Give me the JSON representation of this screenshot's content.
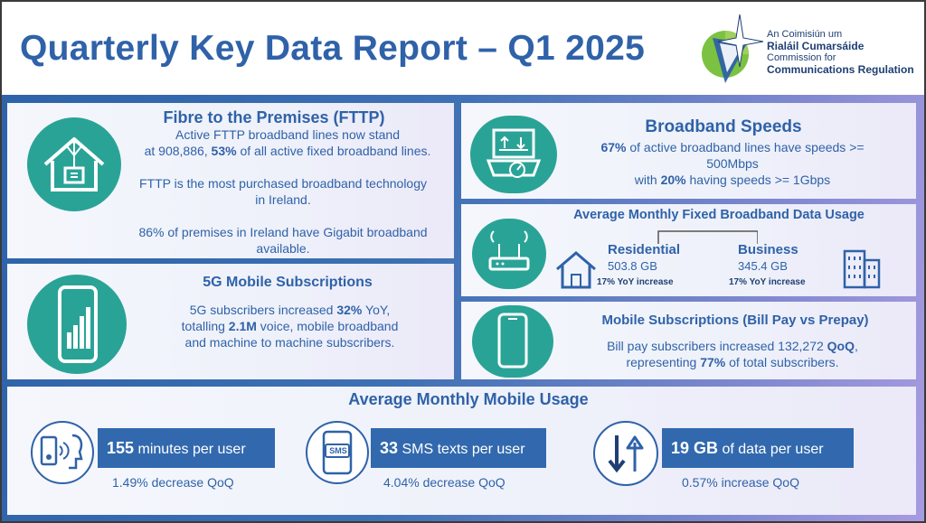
{
  "header": {
    "title": "Quarterly Key Data Report – Q1 2025",
    "logo_line1": "An Coimisiún um",
    "logo_line2": "Rialáil Cumarsáide",
    "logo_line3": "Commission for",
    "logo_line4": "Communications Regulation"
  },
  "fttp": {
    "title": "Fibre to the Premises (FTTP)",
    "line1": "Active FTTP broadband lines now stand",
    "line2_pre": "at 908,886, ",
    "line2_bold": "53%",
    "line2_post": " of all active fixed broadband lines.",
    "para2": "FTTP is the most purchased broadband technology in Ireland.",
    "para3": "86% of premises in Ireland have Gigabit broadband available."
  },
  "mobile5g": {
    "title": "5G Mobile Subscriptions",
    "l1_pre": "5G subscribers increased ",
    "l1_bold": "32%",
    "l1_post": " YoY,",
    "l2_pre": "totalling ",
    "l2_bold": "2.1M",
    "l2_post": " voice, mobile broadband",
    "l3": "and machine to machine subscribers."
  },
  "speeds": {
    "title": "Broadband Speeds",
    "l1_bold": "67%",
    "l1_post": " of active broadband lines have speeds >=",
    "l2": "500Mbps",
    "l3_pre": "with ",
    "l3_bold": "20%",
    "l3_post": " having speeds >= 1Gbps"
  },
  "data_usage": {
    "title": "Average Monthly Fixed Broadband Data Usage",
    "residential_label": "Residential",
    "residential_value": "503.8 GB",
    "residential_change": "17% YoY increase",
    "business_label": "Business",
    "business_value": "345.4 GB",
    "business_change": "17% YoY increase"
  },
  "billpay": {
    "title": "Mobile Subscriptions (Bill Pay vs Prepay)",
    "l1_pre": "Bill pay subscribers increased 132,272 ",
    "l1_bold": "QoQ",
    "l1_post": ",",
    "l2_pre": "representing ",
    "l2_bold": "77%",
    "l2_post": " of total subscribers."
  },
  "mobile_usage": {
    "title": "Average Monthly Mobile Usage",
    "minutes_value": "155",
    "minutes_label": " minutes per user",
    "minutes_change": "1.49% decrease QoQ",
    "sms_value": "33",
    "sms_label": " SMS texts per user",
    "sms_change": "4.04% decrease QoQ",
    "sms_icon_text": "SMS",
    "data_value": "19 GB",
    "data_label": " of data per user",
    "data_change": "0.57% increase QoQ"
  },
  "colors": {
    "brand_blue": "#2f62a8",
    "teal": "#2aa397"
  }
}
